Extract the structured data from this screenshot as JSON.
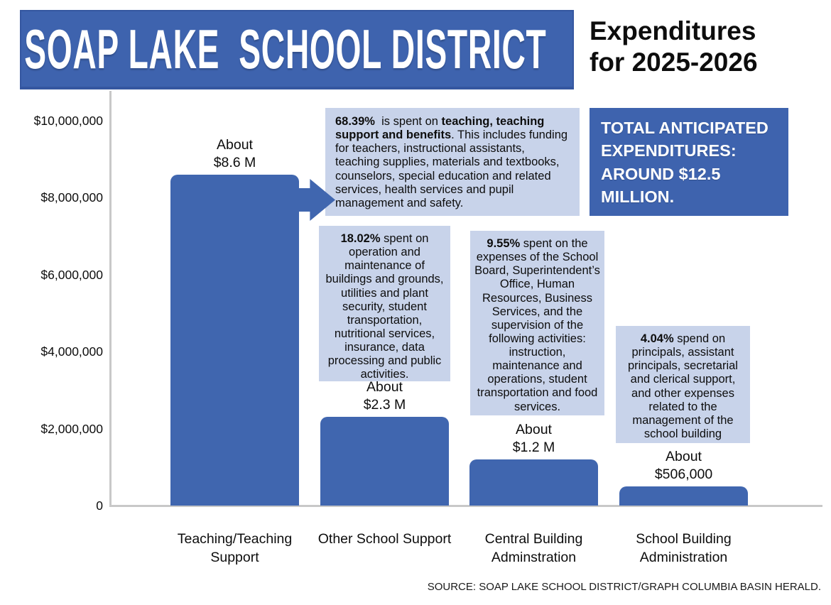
{
  "header": {
    "banner_title": "SOAP LAKE  SCHOOL DISTRICT",
    "banner_color": "#3E63AE",
    "subtitle": "Expenditures\nfor 2025-2026"
  },
  "total_box": {
    "text": "TOTAL ANTICIPATED EXPENDITURES: AROUND $12.5 MILLION.",
    "color": "#3E63AE"
  },
  "annotations": {
    "box1": {
      "bold1": "68.39%",
      "text1": "  is spent on ",
      "bold2": "teaching, teaching support and benefits",
      "text2": ". This includes funding for teachers, instructional assistants, teaching supplies, materials and textbooks, counselors, special education and related services, health services and pupil management and safety."
    },
    "box2": {
      "bold": "18.02%",
      "text": " spent on operation and maintenance of buildings and grounds, utilities and plant security, student transportation, nutritional services, insurance, data processing and public activities."
    },
    "box3": {
      "bold": "9.55%",
      "text": " spent on the expenses of the School Board, Superintendent’s Office, Human Resources, Business Services, and the supervision of the following activities: instruction, maintenance and operations, student transportation and food services."
    },
    "box4": {
      "bold": "4.04%",
      "text": " spend on principals, assistant principals, secretarial and clerical support, and other expenses related to the management of the school building"
    }
  },
  "source": "SOURCE: SOAP LAKE SCHOOL DISTRICT/GRAPH COLUMBIA BASIN HERALD.",
  "chart_data": {
    "type": "bar",
    "title": "Soap Lake School District Expenditures for 2025-2026",
    "categories": [
      "Teaching/Teaching Support",
      "Other School Support",
      "Central Building Adminstration",
      "School Building Administration"
    ],
    "values": [
      8600000,
      2300000,
      1200000,
      506000
    ],
    "bar_labels": [
      "About\n$8.6 M",
      "About\n$2.3 M",
      "About\n$1.2 M",
      "About\n$506,000"
    ],
    "percent_shares": [
      "68.39%",
      "18.02%",
      "9.55%",
      "4.04%"
    ],
    "bar_color": "#4066AF",
    "xlabel": "",
    "ylabel": "",
    "ylim": [
      0,
      10000000
    ],
    "grid": false,
    "legend": false,
    "y_ticks": [
      {
        "value": 10000000,
        "label": "$10,000,000"
      },
      {
        "value": 8000000,
        "label": "$8,000,000"
      },
      {
        "value": 6000000,
        "label": "$6,000,000"
      },
      {
        "value": 4000000,
        "label": "$4,000,000"
      },
      {
        "value": 2000000,
        "label": "$2,000,000"
      },
      {
        "value": 0,
        "label": "0"
      }
    ]
  }
}
